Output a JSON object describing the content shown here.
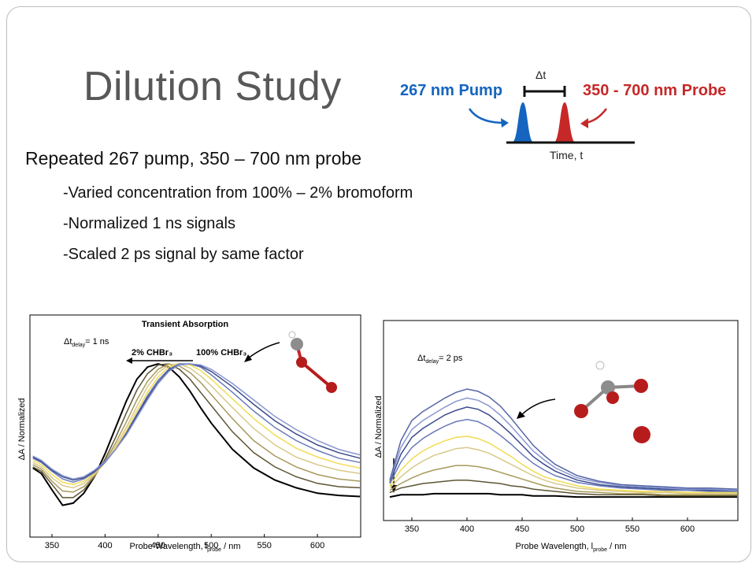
{
  "slide": {
    "title": "Dilution Study",
    "bullet_main": "Repeated 267 pump, 350 – 700 nm probe",
    "sub_bullets": [
      "-Varied concentration from 100% – 2% bromoform",
      "-Normalized 1 ns signals",
      "-Scaled 2 ps signal by same factor"
    ]
  },
  "schematic": {
    "pump_label": "267 nm Pump",
    "probe_label": "350 - 700 nm Probe",
    "delta_label": "Δt",
    "time_label": "Time, t",
    "pump_color": "#1565c0",
    "probe_color": "#c62828"
  },
  "colors": {
    "series_palette": [
      "#000000",
      "#5e5433",
      "#a89a5c",
      "#d8c98a",
      "#f2dc52",
      "#6a7bb8",
      "#3b4b8c",
      "#8a97d0",
      "#5566a8"
    ]
  },
  "chart_data": [
    {
      "type": "line",
      "title": "Transient Absorption",
      "delay_label_main": "Δt",
      "delay_label_sub": "delay",
      "delay_label_value": "= 1 ns",
      "annotation_left": "2% CHBr₃",
      "annotation_right": "100% CHBr₃",
      "xlabel_main": "Probe Wavelength, l",
      "xlabel_sub": "probe",
      "xlabel_unit": " / nm",
      "ylabel": "ΔA / Normalized",
      "xlim": [
        330,
        640
      ],
      "xticks": [
        350,
        400,
        450,
        500,
        550,
        600
      ],
      "ylim": [
        -0.35,
        1.05
      ],
      "series": [
        {
          "x": [
            332,
            340,
            350,
            360,
            370,
            380,
            390,
            400,
            410,
            420,
            430,
            440,
            450,
            460,
            470,
            480,
            490,
            500,
            520,
            540,
            560,
            580,
            600,
            620,
            640
          ],
          "y": [
            0.05,
            0.0,
            -0.15,
            -0.29,
            -0.27,
            -0.18,
            -0.03,
            0.18,
            0.42,
            0.66,
            0.86,
            0.97,
            1.0,
            0.97,
            0.88,
            0.75,
            0.6,
            0.46,
            0.22,
            0.05,
            -0.06,
            -0.13,
            -0.18,
            -0.2,
            -0.21
          ]
        },
        {
          "x": [
            332,
            340,
            350,
            360,
            370,
            380,
            390,
            400,
            410,
            420,
            430,
            440,
            450,
            460,
            470,
            480,
            490,
            500,
            520,
            540,
            560,
            580,
            600,
            620,
            640
          ],
          "y": [
            0.06,
            0.02,
            -0.1,
            -0.22,
            -0.22,
            -0.15,
            -0.03,
            0.13,
            0.33,
            0.55,
            0.76,
            0.91,
            0.99,
            1.0,
            0.95,
            0.86,
            0.74,
            0.62,
            0.38,
            0.19,
            0.06,
            -0.03,
            -0.09,
            -0.12,
            -0.13
          ]
        },
        {
          "x": [
            332,
            340,
            350,
            360,
            370,
            380,
            390,
            400,
            410,
            420,
            430,
            440,
            450,
            460,
            470,
            480,
            490,
            500,
            520,
            540,
            560,
            580,
            600,
            620,
            640
          ],
          "y": [
            0.08,
            0.04,
            -0.07,
            -0.16,
            -0.17,
            -0.12,
            -0.02,
            0.11,
            0.28,
            0.47,
            0.67,
            0.84,
            0.95,
            1.0,
            0.98,
            0.92,
            0.83,
            0.72,
            0.5,
            0.3,
            0.16,
            0.06,
            -0.01,
            -0.05,
            -0.07
          ]
        },
        {
          "x": [
            332,
            340,
            350,
            360,
            370,
            380,
            390,
            400,
            410,
            420,
            430,
            440,
            450,
            460,
            470,
            480,
            490,
            500,
            520,
            540,
            560,
            580,
            600,
            620,
            640
          ],
          "y": [
            0.1,
            0.06,
            -0.04,
            -0.11,
            -0.13,
            -0.09,
            -0.01,
            0.1,
            0.25,
            0.42,
            0.61,
            0.79,
            0.92,
            0.99,
            1.0,
            0.96,
            0.89,
            0.8,
            0.6,
            0.41,
            0.26,
            0.15,
            0.08,
            0.03,
            0.0
          ]
        },
        {
          "x": [
            332,
            340,
            350,
            360,
            370,
            380,
            390,
            400,
            410,
            420,
            430,
            440,
            450,
            460,
            470,
            480,
            490,
            500,
            520,
            540,
            560,
            580,
            600,
            620,
            640
          ],
          "y": [
            0.12,
            0.08,
            -0.01,
            -0.08,
            -0.1,
            -0.07,
            0.0,
            0.1,
            0.23,
            0.39,
            0.57,
            0.74,
            0.88,
            0.97,
            1.0,
            0.99,
            0.94,
            0.86,
            0.68,
            0.5,
            0.35,
            0.23,
            0.15,
            0.09,
            0.05
          ]
        },
        {
          "x": [
            332,
            340,
            350,
            360,
            370,
            380,
            390,
            400,
            410,
            420,
            430,
            440,
            450,
            460,
            470,
            480,
            490,
            500,
            520,
            540,
            560,
            580,
            600,
            620,
            640
          ],
          "y": [
            0.14,
            0.1,
            0.02,
            -0.05,
            -0.08,
            -0.05,
            0.01,
            0.1,
            0.22,
            0.37,
            0.54,
            0.71,
            0.85,
            0.95,
            1.0,
            1.0,
            0.97,
            0.9,
            0.74,
            0.57,
            0.42,
            0.3,
            0.21,
            0.14,
            0.1
          ]
        },
        {
          "x": [
            332,
            340,
            350,
            360,
            370,
            380,
            390,
            400,
            410,
            420,
            430,
            440,
            450,
            460,
            470,
            480,
            490,
            500,
            520,
            540,
            560,
            580,
            600,
            620,
            640
          ],
          "y": [
            0.15,
            0.11,
            0.03,
            -0.03,
            -0.06,
            -0.04,
            0.02,
            0.11,
            0.22,
            0.36,
            0.53,
            0.69,
            0.83,
            0.94,
            0.99,
            1.0,
            0.98,
            0.93,
            0.79,
            0.63,
            0.48,
            0.36,
            0.26,
            0.19,
            0.14
          ]
        },
        {
          "x": [
            332,
            340,
            350,
            360,
            370,
            380,
            390,
            400,
            410,
            420,
            430,
            440,
            450,
            460,
            470,
            480,
            490,
            500,
            520,
            540,
            560,
            580,
            600,
            620,
            640
          ],
          "y": [
            0.16,
            0.12,
            0.04,
            -0.02,
            -0.05,
            -0.03,
            0.03,
            0.11,
            0.22,
            0.35,
            0.51,
            0.67,
            0.82,
            0.93,
            0.99,
            1.0,
            0.99,
            0.95,
            0.82,
            0.67,
            0.52,
            0.4,
            0.3,
            0.22,
            0.17
          ]
        }
      ]
    },
    {
      "type": "line",
      "title": "",
      "delay_label_main": "Δt",
      "delay_label_sub": "delay",
      "delay_label_value": "= 2 ps",
      "xlabel_main": "Probe Wavelength, l",
      "xlabel_sub": "probe",
      "xlabel_unit": " / nm",
      "ylabel": "ΔA / Normalized",
      "xlim": [
        325,
        645
      ],
      "xticks": [
        350,
        400,
        450,
        500,
        550,
        600
      ],
      "ylim": [
        0,
        1.05
      ],
      "series": [
        {
          "x": [
            330,
            340,
            350,
            360,
            370,
            380,
            390,
            400,
            410,
            420,
            430,
            440,
            450,
            460,
            470,
            480,
            500,
            520,
            540,
            560,
            580,
            600,
            620,
            645
          ],
          "y": [
            0.02,
            0.04,
            0.04,
            0.04,
            0.05,
            0.05,
            0.05,
            0.05,
            0.05,
            0.05,
            0.04,
            0.04,
            0.04,
            0.03,
            0.03,
            0.03,
            0.02,
            0.02,
            0.02,
            0.02,
            0.02,
            0.02,
            0.02,
            0.02
          ]
        },
        {
          "x": [
            330,
            340,
            350,
            360,
            370,
            380,
            390,
            400,
            410,
            420,
            430,
            440,
            450,
            460,
            470,
            480,
            500,
            520,
            540,
            560,
            580,
            600,
            620,
            645
          ],
          "y": [
            0.06,
            0.1,
            0.12,
            0.14,
            0.15,
            0.16,
            0.17,
            0.17,
            0.16,
            0.15,
            0.14,
            0.12,
            0.11,
            0.09,
            0.08,
            0.07,
            0.05,
            0.04,
            0.04,
            0.04,
            0.03,
            0.03,
            0.03,
            0.03
          ]
        },
        {
          "x": [
            330,
            340,
            350,
            360,
            370,
            380,
            390,
            400,
            410,
            420,
            430,
            440,
            450,
            460,
            470,
            480,
            500,
            520,
            540,
            560,
            580,
            600,
            620,
            645
          ],
          "y": [
            0.08,
            0.14,
            0.19,
            0.23,
            0.26,
            0.28,
            0.3,
            0.3,
            0.29,
            0.27,
            0.24,
            0.21,
            0.18,
            0.15,
            0.12,
            0.1,
            0.07,
            0.06,
            0.05,
            0.05,
            0.04,
            0.04,
            0.04,
            0.04
          ]
        },
        {
          "x": [
            330,
            340,
            350,
            360,
            370,
            380,
            390,
            400,
            410,
            420,
            430,
            440,
            450,
            460,
            470,
            480,
            500,
            520,
            540,
            560,
            580,
            600,
            620,
            645
          ],
          "y": [
            0.1,
            0.2,
            0.28,
            0.34,
            0.39,
            0.42,
            0.45,
            0.46,
            0.44,
            0.41,
            0.36,
            0.31,
            0.26,
            0.21,
            0.17,
            0.14,
            0.1,
            0.08,
            0.07,
            0.06,
            0.06,
            0.05,
            0.05,
            0.05
          ]
        },
        {
          "x": [
            330,
            340,
            350,
            360,
            370,
            380,
            390,
            400,
            410,
            420,
            430,
            440,
            450,
            460,
            470,
            480,
            500,
            520,
            540,
            560,
            580,
            600,
            620,
            645
          ],
          "y": [
            0.12,
            0.26,
            0.36,
            0.43,
            0.48,
            0.52,
            0.55,
            0.56,
            0.54,
            0.5,
            0.44,
            0.38,
            0.31,
            0.25,
            0.2,
            0.17,
            0.12,
            0.09,
            0.08,
            0.07,
            0.07,
            0.06,
            0.06,
            0.06
          ]
        },
        {
          "x": [
            330,
            340,
            350,
            360,
            370,
            380,
            390,
            400,
            410,
            420,
            430,
            440,
            450,
            460,
            470,
            480,
            500,
            520,
            540,
            560,
            580,
            600,
            620,
            645
          ],
          "y": [
            0.14,
            0.33,
            0.46,
            0.54,
            0.6,
            0.65,
            0.69,
            0.71,
            0.69,
            0.64,
            0.57,
            0.49,
            0.4,
            0.32,
            0.26,
            0.21,
            0.15,
            0.12,
            0.1,
            0.09,
            0.08,
            0.08,
            0.07,
            0.07
          ]
        },
        {
          "x": [
            330,
            340,
            350,
            360,
            370,
            380,
            390,
            400,
            410,
            420,
            430,
            440,
            450,
            460,
            470,
            480,
            500,
            520,
            540,
            560,
            580,
            600,
            620,
            645
          ],
          "y": [
            0.15,
            0.4,
            0.55,
            0.63,
            0.69,
            0.75,
            0.79,
            0.82,
            0.8,
            0.75,
            0.67,
            0.58,
            0.48,
            0.38,
            0.31,
            0.25,
            0.17,
            0.13,
            0.11,
            0.1,
            0.09,
            0.09,
            0.08,
            0.08
          ]
        },
        {
          "x": [
            330,
            340,
            350,
            360,
            370,
            380,
            390,
            400,
            410,
            420,
            430,
            440,
            450,
            460,
            470,
            480,
            500,
            520,
            540,
            560,
            580,
            600,
            620,
            645
          ],
          "y": [
            0.16,
            0.46,
            0.62,
            0.7,
            0.76,
            0.82,
            0.87,
            0.9,
            0.88,
            0.83,
            0.75,
            0.65,
            0.54,
            0.43,
            0.35,
            0.28,
            0.19,
            0.15,
            0.12,
            0.11,
            0.1,
            0.09,
            0.09,
            0.08
          ]
        },
        {
          "x": [
            330,
            340,
            350,
            360,
            370,
            380,
            390,
            400,
            410,
            420,
            430,
            440,
            450,
            460,
            470,
            480,
            500,
            520,
            540,
            560,
            580,
            600,
            620,
            645
          ],
          "y": [
            0.17,
            0.52,
            0.7,
            0.78,
            0.84,
            0.9,
            0.95,
            0.98,
            0.96,
            0.91,
            0.83,
            0.72,
            0.6,
            0.48,
            0.39,
            0.31,
            0.21,
            0.16,
            0.13,
            0.12,
            0.11,
            0.1,
            0.1,
            0.09
          ]
        }
      ]
    }
  ]
}
